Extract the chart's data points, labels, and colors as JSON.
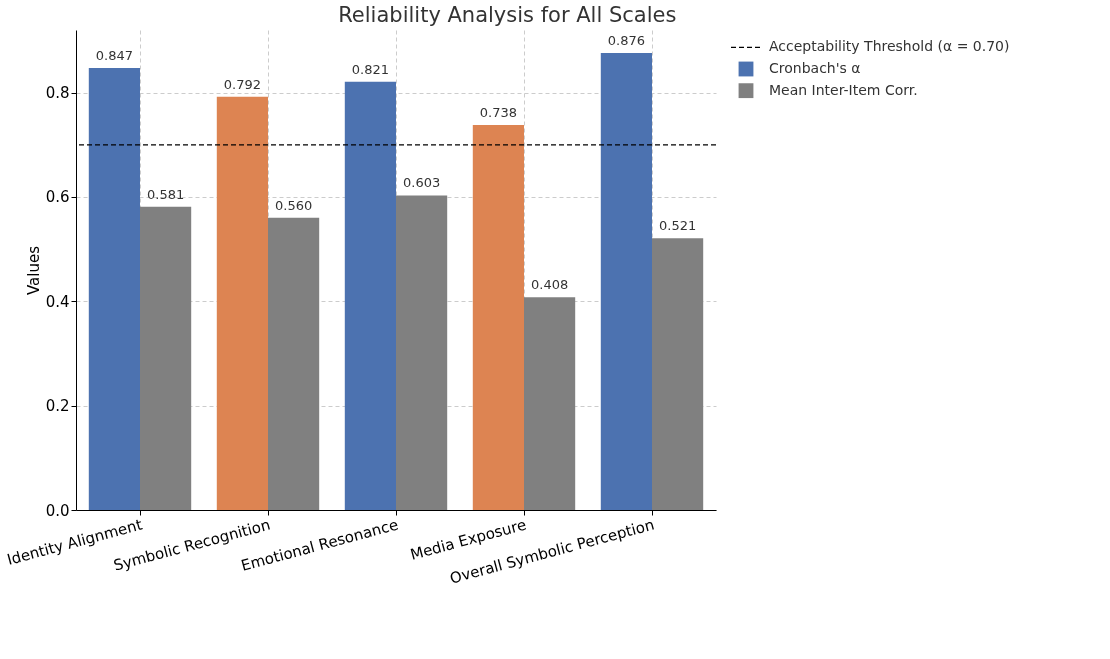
{
  "chart_data": {
    "type": "bar",
    "title": "Reliability Analysis for All Scales",
    "ylabel": "Values",
    "categories": [
      "Identity Alignment",
      "Symbolic Recognition",
      "Emotional Resonance",
      "Media Exposure",
      "Overall Symbolic Perception"
    ],
    "series": [
      {
        "name": "Cronbach's α",
        "color": "#4c72b0",
        "colors": [
          "#4c72b0",
          "#dd8452",
          "#4c72b0",
          "#dd8452",
          "#4c72b0"
        ],
        "values": [
          0.847,
          0.792,
          0.821,
          0.738,
          0.876
        ],
        "value_labels": [
          "0.847",
          "0.792",
          "0.821",
          "0.738",
          "0.876"
        ]
      },
      {
        "name": "Mean Inter-Item Corr.",
        "color": "#808080",
        "values": [
          0.581,
          0.56,
          0.603,
          0.408,
          0.521
        ],
        "value_labels": [
          "0.581",
          "0.560",
          "0.603",
          "0.408",
          "0.521"
        ]
      }
    ],
    "ylim": [
      0,
      0.92
    ],
    "yticks": [
      {
        "value": 0,
        "label": "0.0"
      },
      0.2,
      0.4,
      0.6,
      0.8
    ],
    "ref_lines": [
      {
        "axis": "y",
        "value": 0.7,
        "label": "Acceptability Threshold (α = 0.70)",
        "color": "#000000",
        "line_style": "dashed"
      }
    ],
    "grid": true,
    "legend": "right"
  }
}
